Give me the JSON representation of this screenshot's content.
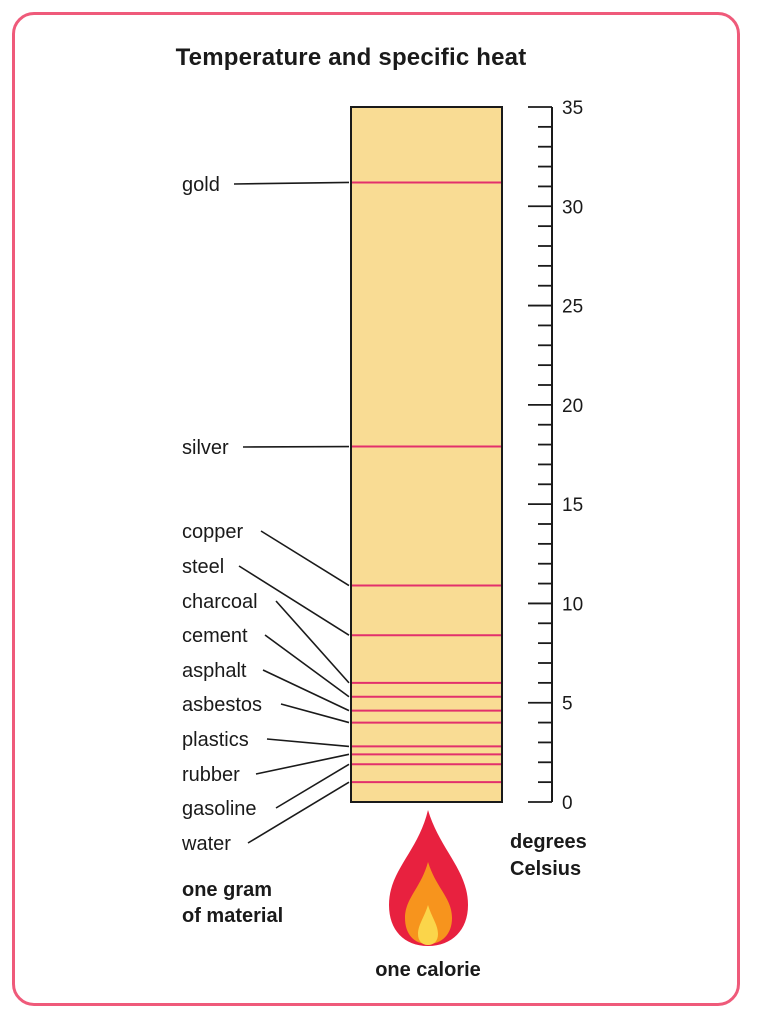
{
  "title": "Temperature and specific heat",
  "axis": {
    "unit_line1": "degrees",
    "unit_line2": "Celsius",
    "min": 0,
    "max": 35,
    "major_step": 5,
    "minor_step": 1,
    "tick_labels": [
      "0",
      "5",
      "10",
      "15",
      "20",
      "25",
      "30",
      "35"
    ]
  },
  "left_caption": {
    "line1": "one gram",
    "line2": "of material"
  },
  "bottom_caption": "one calorie",
  "colors": {
    "column_fill": "#f9dc94",
    "marker": "#e2306c",
    "border": "#ef5a7a",
    "flame_outer": "#e8213f",
    "flame_mid": "#f7941d",
    "flame_inner": "#fbd54a"
  },
  "chart_data": {
    "type": "bar",
    "title": "Temperature and specific heat",
    "ylabel": "degrees Celsius",
    "ylim": [
      0,
      35
    ],
    "categories": [
      "gold",
      "silver",
      "copper",
      "steel",
      "charcoal",
      "cement",
      "asphalt",
      "asbestos",
      "plastics",
      "rubber",
      "gasoline",
      "water"
    ],
    "values": [
      31.2,
      17.9,
      10.9,
      8.4,
      6.0,
      5.3,
      4.6,
      4.0,
      2.8,
      2.4,
      1.9,
      1.0
    ]
  }
}
